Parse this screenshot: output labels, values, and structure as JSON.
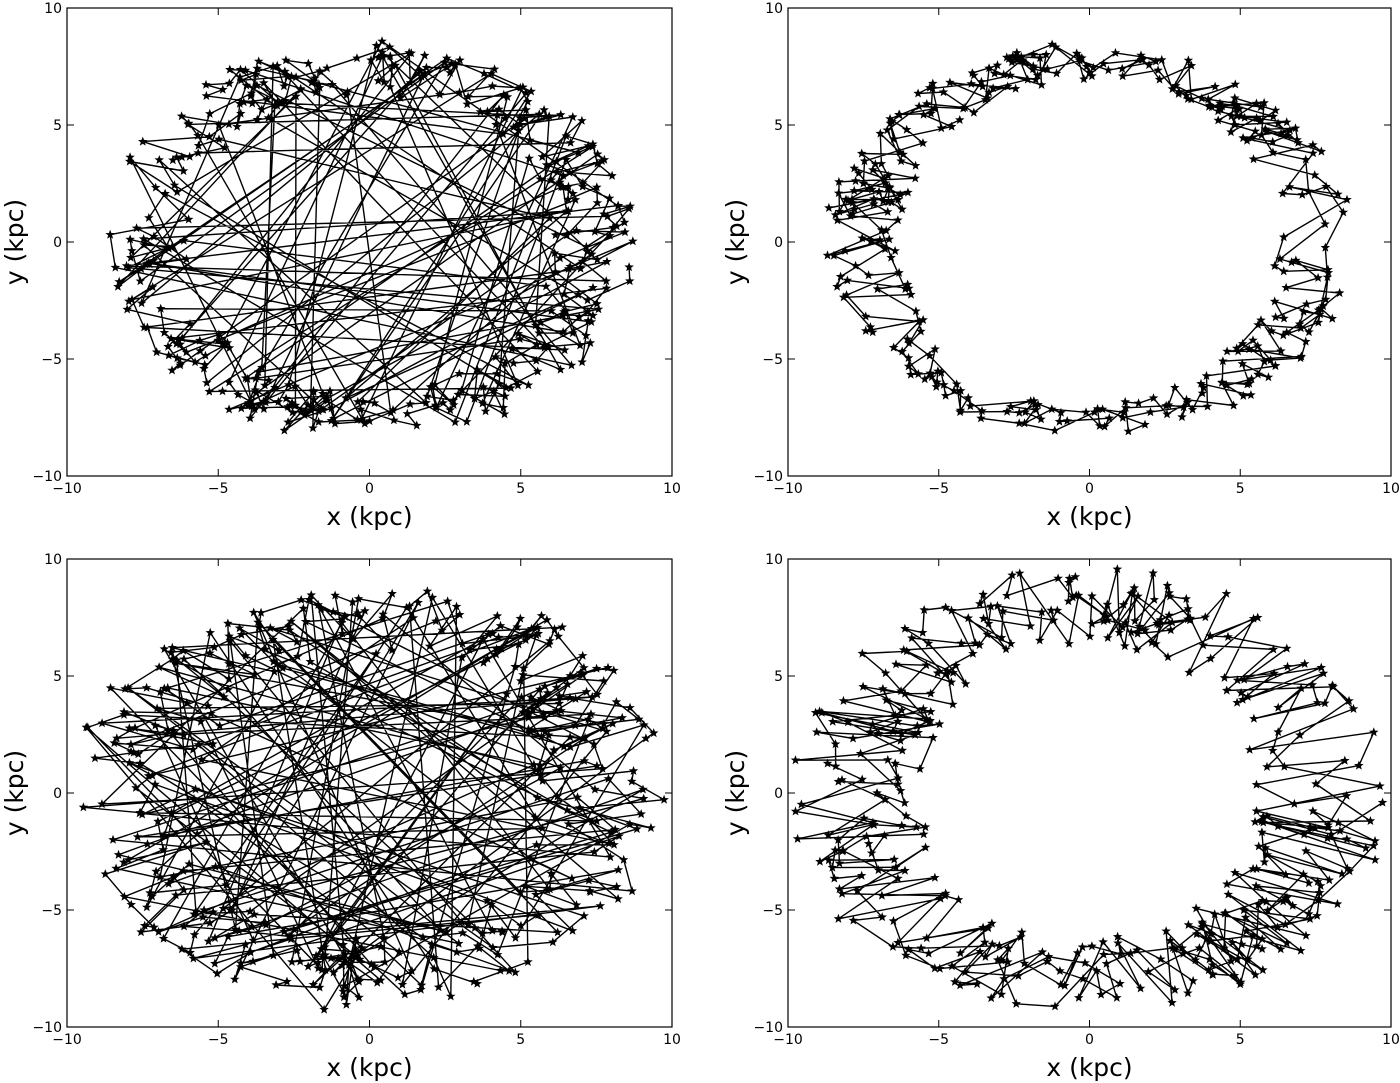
{
  "chart_data": [
    {
      "type": "line",
      "marker": "star",
      "title": "",
      "xlabel": "x (kpc)",
      "ylabel": "y (kpc)",
      "xlim": [
        -10,
        10
      ],
      "ylim": [
        -10,
        10
      ],
      "xticks": [
        -10,
        -5,
        0,
        5,
        10
      ],
      "yticks": [
        -10,
        -5,
        0,
        5,
        10
      ],
      "grid": false,
      "pattern": "dense random walk on a ring with long chords crossing the interior",
      "series": [
        {
          "ring_center": [
            0,
            0
          ],
          "ring_radius_x": [
            6.0,
            8.8
          ],
          "ring_radius_y": [
            6.2,
            8.8
          ],
          "points": 420,
          "chord_probability": 0.22,
          "seed": 11
        }
      ]
    },
    {
      "type": "line",
      "marker": "star",
      "title": "",
      "xlabel": "x (kpc)",
      "ylabel": "y (kpc)",
      "xlim": [
        -10,
        10
      ],
      "ylim": [
        -10,
        10
      ],
      "xticks": [
        -10,
        -5,
        0,
        5,
        10
      ],
      "yticks": [
        -10,
        -5,
        0,
        5,
        10
      ],
      "grid": false,
      "pattern": "local random walk on a ring with empty interior",
      "series": [
        {
          "ring_center": [
            0,
            0
          ],
          "ring_radius_x": [
            6.2,
            8.8
          ],
          "ring_radius_y": [
            6.8,
            8.7
          ],
          "points": 380,
          "chord_probability": 0.0,
          "seed": 23
        }
      ]
    },
    {
      "type": "line",
      "marker": "star",
      "title": "",
      "xlabel": "x (kpc)",
      "ylabel": "y (kpc)",
      "xlim": [
        -10,
        10
      ],
      "ylim": [
        -10,
        10
      ],
      "xticks": [
        -10,
        -5,
        0,
        5,
        10
      ],
      "yticks": [
        -10,
        -5,
        0,
        5,
        10
      ],
      "grid": false,
      "pattern": "wide noisy ring with many long chords",
      "series": [
        {
          "ring_center": [
            0,
            0
          ],
          "ring_radius_x": [
            5.5,
            10.0
          ],
          "ring_radius_y": [
            5.8,
            9.6
          ],
          "points": 440,
          "chord_probability": 0.3,
          "seed": 37
        }
      ]
    },
    {
      "type": "line",
      "marker": "star",
      "title": "",
      "xlabel": "x (kpc)",
      "ylabel": "y (kpc)",
      "xlim": [
        -10,
        10
      ],
      "ylim": [
        -10,
        10
      ],
      "xticks": [
        -10,
        -5,
        0,
        5,
        10
      ],
      "yticks": [
        -10,
        -5,
        0,
        5,
        10
      ],
      "grid": false,
      "pattern": "wide local random walk on a ring with empty interior",
      "series": [
        {
          "ring_center": [
            0,
            0
          ],
          "ring_radius_x": [
            5.5,
            10.0
          ],
          "ring_radius_y": [
            6.0,
            9.8
          ],
          "points": 420,
          "chord_probability": 0.0,
          "seed": 51
        }
      ]
    }
  ]
}
